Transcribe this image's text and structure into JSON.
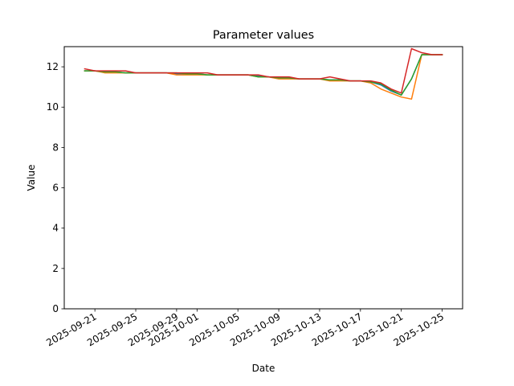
{
  "chart_data": {
    "type": "line",
    "title": "Parameter values",
    "xlabel": "Date",
    "ylabel": "Value",
    "ylim": [
      0,
      13
    ],
    "xlim": [
      "2025-09-18",
      "2025-10-27"
    ],
    "y_ticks": [
      0,
      2,
      4,
      6,
      8,
      10,
      12
    ],
    "x_ticks": [
      "2025-09-21",
      "2025-09-25",
      "2025-09-29",
      "2025-10-01",
      "2025-10-05",
      "2025-10-09",
      "2025-10-13",
      "2025-10-17",
      "2025-10-21",
      "2025-10-25"
    ],
    "grid": false,
    "x": [
      "2025-09-20",
      "2025-09-21",
      "2025-09-22",
      "2025-09-23",
      "2025-09-24",
      "2025-09-25",
      "2025-09-26",
      "2025-09-27",
      "2025-09-28",
      "2025-09-29",
      "2025-09-30",
      "2025-10-01",
      "2025-10-02",
      "2025-10-03",
      "2025-10-04",
      "2025-10-05",
      "2025-10-06",
      "2025-10-07",
      "2025-10-08",
      "2025-10-09",
      "2025-10-10",
      "2025-10-11",
      "2025-10-12",
      "2025-10-13",
      "2025-10-14",
      "2025-10-15",
      "2025-10-16",
      "2025-10-17",
      "2025-10-18",
      "2025-10-19",
      "2025-10-20",
      "2025-10-21",
      "2025-10-22",
      "2025-10-23",
      "2025-10-24",
      "2025-10-25"
    ],
    "series": [
      {
        "color": "#1f77b4",
        "values": [
          11.8,
          11.8,
          11.75,
          11.75,
          11.7,
          11.7,
          11.7,
          11.7,
          11.7,
          11.65,
          11.65,
          11.65,
          11.6,
          11.6,
          11.6,
          11.6,
          11.6,
          11.55,
          11.5,
          11.45,
          11.45,
          11.4,
          11.4,
          11.4,
          11.35,
          11.35,
          11.3,
          11.3,
          11.25,
          11.1,
          10.8,
          10.6,
          11.4,
          12.6,
          12.6,
          12.6
        ]
      },
      {
        "color": "#ff7f0e",
        "values": [
          11.8,
          11.8,
          11.7,
          11.7,
          11.7,
          11.7,
          11.7,
          11.7,
          11.7,
          11.6,
          11.6,
          11.6,
          11.6,
          11.6,
          11.6,
          11.6,
          11.6,
          11.5,
          11.5,
          11.4,
          11.4,
          11.4,
          11.4,
          11.4,
          11.3,
          11.3,
          11.3,
          11.3,
          11.2,
          10.9,
          10.7,
          10.5,
          10.4,
          12.6,
          12.6,
          12.6
        ]
      },
      {
        "color": "#2ca02c",
        "values": [
          11.8,
          11.8,
          11.75,
          11.75,
          11.7,
          11.7,
          11.7,
          11.7,
          11.7,
          11.7,
          11.65,
          11.65,
          11.6,
          11.6,
          11.6,
          11.6,
          11.6,
          11.5,
          11.5,
          11.45,
          11.45,
          11.4,
          11.4,
          11.4,
          11.35,
          11.35,
          11.3,
          11.3,
          11.25,
          11.15,
          10.85,
          10.6,
          11.4,
          12.6,
          12.6,
          12.6
        ]
      },
      {
        "color": "#d62728",
        "values": [
          11.9,
          11.8,
          11.8,
          11.8,
          11.8,
          11.7,
          11.7,
          11.7,
          11.7,
          11.7,
          11.7,
          11.7,
          11.7,
          11.6,
          11.6,
          11.6,
          11.6,
          11.6,
          11.5,
          11.5,
          11.5,
          11.4,
          11.4,
          11.4,
          11.5,
          11.4,
          11.3,
          11.3,
          11.3,
          11.2,
          10.9,
          10.7,
          12.9,
          12.7,
          12.6,
          12.6
        ]
      }
    ]
  }
}
